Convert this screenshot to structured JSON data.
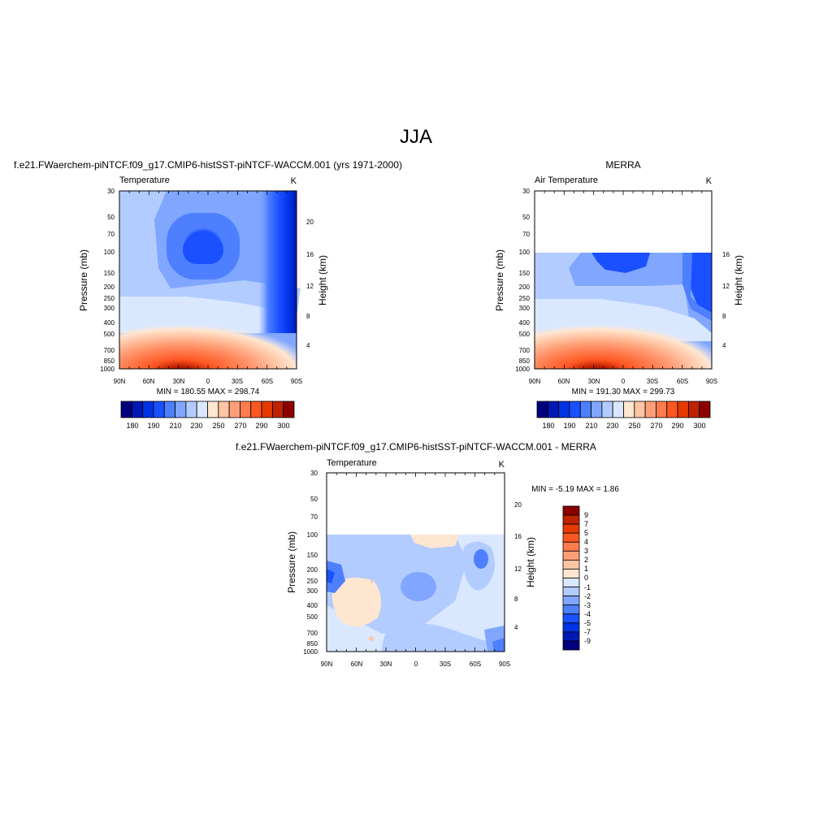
{
  "page_title": "JJA",
  "palette": [
    "#00007f",
    "#0019b3",
    "#0033e6",
    "#1a50ff",
    "#4d7fff",
    "#80a6ff",
    "#b3ccff",
    "#d9e8ff",
    "#ffe6d1",
    "#ffc4a3",
    "#ff9f78",
    "#ff7b4d",
    "#ff5722",
    "#e63900",
    "#bf2200",
    "#8c0000"
  ],
  "chart_data": [
    {
      "type": "heatmap",
      "title": "f.e21.FWaerchem-piNTCF.f09_g17.CMIP6-histSST-piNTCF-WACCM.001 (yrs 1971-2000)",
      "subtitle_left": "Temperature",
      "subtitle_right": "K",
      "xlabel": "",
      "ylabel": "Pressure (mb)",
      "ylabel_right": "Height (km)",
      "x_ticks": [
        "90N",
        "60N",
        "30N",
        "0",
        "30S",
        "60S",
        "90S"
      ],
      "y_ticks": [
        "30",
        "50",
        "70",
        "100",
        "150",
        "200",
        "250",
        "300",
        "400",
        "500",
        "700",
        "850",
        "1000"
      ],
      "y_right_ticks": [
        "20",
        "16",
        "12",
        "8",
        "4"
      ],
      "stats": "MIN = 180.55  MAX = 298.74",
      "colorbar_labels": [
        "180",
        "190",
        "210",
        "230",
        "250",
        "270",
        "290",
        "300"
      ],
      "ylim_mb": [
        1000,
        30
      ],
      "xlim_deg": [
        90,
        -90
      ]
    },
    {
      "type": "heatmap",
      "title": "MERRA",
      "subtitle_left": "Air Temperature",
      "subtitle_right": "K",
      "xlabel": "",
      "ylabel": "Pressure (mb)",
      "ylabel_right": "Height (km)",
      "x_ticks": [
        "90N",
        "60N",
        "30N",
        "0",
        "30S",
        "60S",
        "90S"
      ],
      "y_ticks": [
        "30",
        "50",
        "70",
        "100",
        "150",
        "200",
        "250",
        "300",
        "400",
        "500",
        "700",
        "850",
        "1000"
      ],
      "y_right_ticks": [
        "16",
        "12",
        "8",
        "4"
      ],
      "stats": "MIN = 191.30  MAX = 299.73",
      "colorbar_labels": [
        "180",
        "190",
        "210",
        "230",
        "250",
        "270",
        "290",
        "300"
      ],
      "data_top_mb": 100,
      "ylim_mb": [
        1000,
        30
      ],
      "xlim_deg": [
        90,
        -90
      ]
    },
    {
      "type": "heatmap",
      "title": "f.e21.FWaerchem-piNTCF.f09_g17.CMIP6-histSST-piNTCF-WACCM.001 - MERRA",
      "subtitle_left": "Temperature",
      "subtitle_right": "K",
      "xlabel": "",
      "ylabel": "Pressure (mb)",
      "ylabel_right": "Height (km)",
      "x_ticks": [
        "90N",
        "60N",
        "30N",
        "0",
        "30S",
        "60S",
        "90S"
      ],
      "y_ticks": [
        "30",
        "50",
        "70",
        "100",
        "150",
        "200",
        "250",
        "300",
        "400",
        "500",
        "700",
        "850",
        "1000"
      ],
      "y_right_ticks": [
        "20",
        "16",
        "12",
        "8",
        "4"
      ],
      "stats": "MIN =  -5.19  MAX =   1.86",
      "colorbar_labels": [
        "9",
        "7",
        "5",
        "4",
        "3",
        "2",
        "1",
        "0",
        "-1",
        "-2",
        "-3",
        "-4",
        "-5",
        "-7",
        "-9"
      ],
      "data_top_mb": 100,
      "ylim_mb": [
        1000,
        30
      ],
      "xlim_deg": [
        90,
        -90
      ]
    }
  ]
}
